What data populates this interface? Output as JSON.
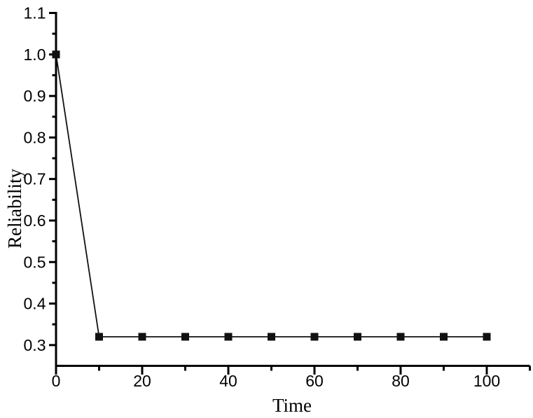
{
  "chart_data": {
    "type": "line",
    "title": "",
    "xlabel": "Time",
    "ylabel": "Reliability",
    "x": [
      0,
      10,
      20,
      30,
      40,
      50,
      60,
      70,
      80,
      90,
      100
    ],
    "y": [
      1.0,
      0.32,
      0.32,
      0.32,
      0.32,
      0.32,
      0.32,
      0.32,
      0.32,
      0.32,
      0.32
    ],
    "xlim": [
      0,
      110
    ],
    "ylim": [
      0.25,
      1.1
    ],
    "x_major_ticks": [
      0,
      20,
      40,
      60,
      80,
      100
    ],
    "x_major_labels": [
      "0",
      "20",
      "40",
      "60",
      "80",
      "100"
    ],
    "x_minor_ticks": [
      10,
      30,
      50,
      70,
      90,
      110
    ],
    "y_major_ticks": [
      0.3,
      0.4,
      0.5,
      0.6,
      0.7,
      0.8,
      0.9,
      1.0,
      1.1
    ],
    "y_major_labels": [
      "0.3",
      "0.4",
      "0.5",
      "0.6",
      "0.7",
      "0.8",
      "0.9",
      "1.0",
      "1.1"
    ],
    "y_minor_ticks": [
      0.35,
      0.45,
      0.55,
      0.65,
      0.75,
      0.85,
      0.95,
      1.05
    ],
    "marker": "square",
    "line_color": "#111111",
    "marker_color": "#111111",
    "axis_color": "#000000",
    "background": "#ffffff",
    "grid": false,
    "legend": null
  }
}
